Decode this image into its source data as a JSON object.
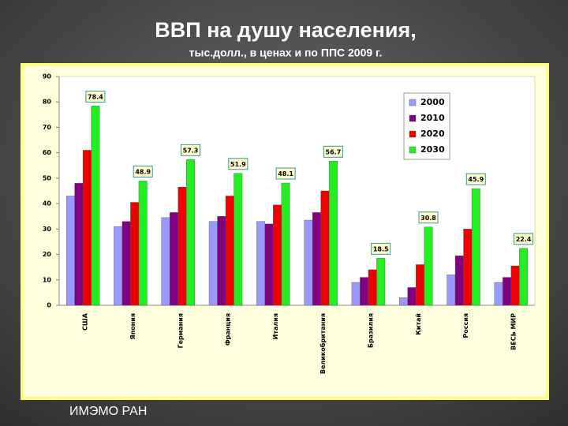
{
  "chart_data": {
    "type": "bar",
    "title": "ВВП  на душу населения,",
    "subtitle": "тыс.долл., в ценах и по ППС 2009 г.",
    "categories": [
      "США",
      "Япония",
      "Германия",
      "Франция",
      "Италия",
      "Великобритания",
      "Бразилия",
      "Китай",
      "Россия",
      "ВЕСЬ МИР"
    ],
    "series": [
      {
        "name": "2000",
        "color": "#9999ff",
        "values": [
          43,
          31,
          34.5,
          33,
          33,
          33.5,
          9,
          3,
          12,
          9
        ]
      },
      {
        "name": "2010",
        "color": "#800080",
        "values": [
          48,
          33,
          36.5,
          35,
          32,
          36.5,
          11,
          7,
          19.5,
          11
        ]
      },
      {
        "name": "2020",
        "color": "#ee0000",
        "values": [
          61,
          40.5,
          46.5,
          43,
          39.5,
          45,
          14,
          16,
          30,
          15.5
        ]
      },
      {
        "name": "2030",
        "color": "#22ee22",
        "values": [
          78.4,
          48.9,
          57.3,
          51.9,
          48.1,
          56.7,
          18.5,
          30.8,
          45.9,
          22.4
        ],
        "data_labels": true
      }
    ],
    "ylim": [
      0,
      90
    ],
    "yticks": [
      0,
      10,
      20,
      30,
      40,
      50,
      60,
      70,
      80,
      90
    ],
    "grid": false,
    "legend": "upper right"
  },
  "footer": "ИМЭМО РАН"
}
